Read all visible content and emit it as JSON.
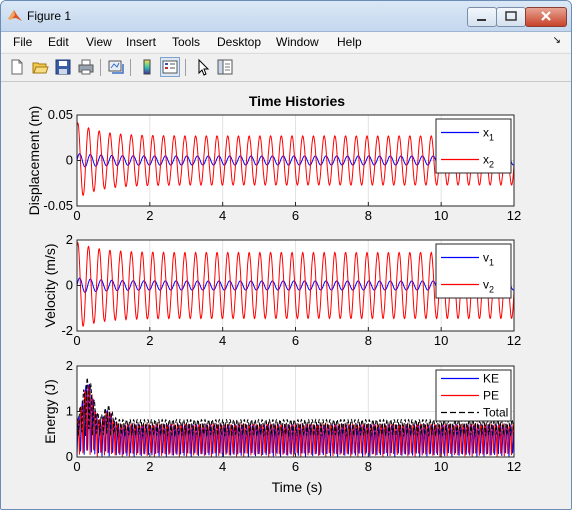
{
  "window": {
    "title": "Figure 1"
  },
  "menu": [
    "File",
    "Edit",
    "View",
    "Insert",
    "Tools",
    "Desktop",
    "Window",
    "Help"
  ],
  "toolbar_icons": [
    "new-figure-icon",
    "open-file-icon",
    "save-icon",
    "print-icon",
    "link-plot-icon",
    "colorbar-icon",
    "legend-icon",
    "pointer-icon",
    "property-inspector-icon"
  ],
  "figure": {
    "title": "Time Histories",
    "xlabel": "Time (s)"
  },
  "colors": {
    "blue": "#0000ff",
    "red": "#ff0000",
    "black": "#000000"
  },
  "chart_data": [
    {
      "type": "line",
      "ylabel": "Displacement (m)",
      "xlim": [
        0,
        12
      ],
      "ylim": [
        -0.05,
        0.05
      ],
      "xticks": [
        "0",
        "2",
        "4",
        "6",
        "8",
        "10",
        "12"
      ],
      "yticks": [
        "0.05",
        "0",
        "-0.05"
      ],
      "legend_position": "top-right",
      "legend": [
        {
          "base": "x",
          "sub": "1",
          "color": "#0000ff"
        },
        {
          "base": "x",
          "sub": "2",
          "color": "#ff0000"
        }
      ],
      "series": [
        {
          "name": "x1",
          "color": "#0000ff",
          "amplitude_peak": 0.008,
          "amplitude_steady": 0.005
        },
        {
          "name": "x2",
          "color": "#ff0000",
          "amplitude_peak": 0.042,
          "amplitude_steady": 0.027
        }
      ],
      "frequency_hz": 3.4
    },
    {
      "type": "line",
      "ylabel": "Velocity (m/s)",
      "xlim": [
        0,
        12
      ],
      "ylim": [
        -2,
        2
      ],
      "xticks": [
        "0",
        "2",
        "4",
        "6",
        "8",
        "10",
        "12"
      ],
      "yticks": [
        "2",
        "0",
        "-2"
      ],
      "legend_position": "top-right",
      "legend": [
        {
          "base": "v",
          "sub": "1",
          "color": "#0000ff"
        },
        {
          "base": "v",
          "sub": "2",
          "color": "#ff0000"
        }
      ],
      "series": [
        {
          "name": "v1",
          "color": "#0000ff",
          "amplitude_peak": 0.35,
          "amplitude_steady": 0.2
        },
        {
          "name": "v2",
          "color": "#ff0000",
          "amplitude_peak": 1.9,
          "amplitude_steady": 1.45
        }
      ],
      "frequency_hz": 3.4
    },
    {
      "type": "line",
      "ylabel": "Energy (J)",
      "xlim": [
        0,
        12
      ],
      "ylim": [
        0,
        2
      ],
      "xticks": [
        "0",
        "2",
        "4",
        "6",
        "8",
        "10",
        "12"
      ],
      "yticks": [
        "2",
        "1",
        "0"
      ],
      "legend_position": "top-right",
      "legend": [
        {
          "label": "KE",
          "color": "#0000ff",
          "style": "solid"
        },
        {
          "label": "PE",
          "color": "#ff0000",
          "style": "solid"
        },
        {
          "label": "Total",
          "color": "#000000",
          "style": "dashed"
        }
      ],
      "series": [
        {
          "name": "KE",
          "color": "#0000ff",
          "peak": 1.65,
          "steady_max": 0.7
        },
        {
          "name": "PE",
          "color": "#ff0000",
          "peak": 1.6,
          "steady_max": 0.72
        },
        {
          "name": "Total",
          "color": "#000000",
          "peak": 1.75,
          "steady_max": 0.82
        }
      ],
      "frequency_hz": 3.4
    }
  ]
}
